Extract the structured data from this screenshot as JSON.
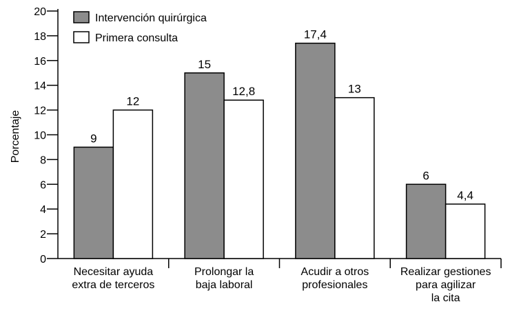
{
  "chart_data": {
    "type": "bar",
    "title": "",
    "xlabel": "",
    "ylabel": "Porcentaje",
    "ylim": [
      0,
      20
    ],
    "yticks": [
      0,
      2,
      4,
      6,
      8,
      10,
      12,
      14,
      16,
      18,
      20
    ],
    "grid": false,
    "legend_position": "top-left",
    "categories": [
      [
        "Necesitar ayuda",
        "extra de terceros"
      ],
      [
        "Prolongar la",
        "baja laboral"
      ],
      [
        "Acudir a otros",
        "profesionales"
      ],
      [
        "Realizar gestiones",
        "para agilizar",
        "la cita"
      ]
    ],
    "series": [
      {
        "name": "Intervención quirúrgica",
        "color": "#8c8c8c",
        "values": [
          9,
          15,
          17.4,
          6
        ],
        "labels": [
          "9",
          "15",
          "17,4",
          "6"
        ]
      },
      {
        "name": "Primera consulta",
        "color": "#ffffff",
        "values": [
          12,
          12.8,
          13,
          4.4
        ],
        "labels": [
          "12",
          "12,8",
          "13",
          "4,4"
        ]
      }
    ]
  }
}
